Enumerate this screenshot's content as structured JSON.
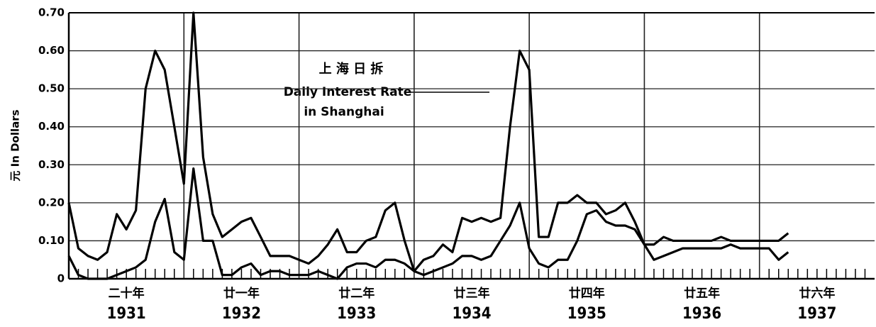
{
  "chart_data": {
    "type": "line",
    "ylabel": "元  In Dollars",
    "annotations": [
      "上 海 日 拆",
      "Daily Interest Rate",
      "in Shanghai"
    ],
    "x": [
      1931.0,
      1931.083,
      1931.167,
      1931.25,
      1931.333,
      1931.417,
      1931.5,
      1931.583,
      1931.667,
      1931.75,
      1931.833,
      1931.917,
      1932.0,
      1932.083,
      1932.167,
      1932.25,
      1932.333,
      1932.417,
      1932.5,
      1932.583,
      1932.667,
      1932.75,
      1932.833,
      1932.917,
      1933.0,
      1933.083,
      1933.167,
      1933.25,
      1933.333,
      1933.417,
      1933.5,
      1933.583,
      1933.667,
      1933.75,
      1933.833,
      1933.917,
      1934.0,
      1934.083,
      1934.167,
      1934.25,
      1934.333,
      1934.417,
      1934.5,
      1934.583,
      1934.667,
      1934.75,
      1934.833,
      1934.917,
      1935.0,
      1935.083,
      1935.167,
      1935.25,
      1935.333,
      1935.417,
      1935.5,
      1935.583,
      1935.667,
      1935.75,
      1935.833,
      1935.917,
      1936.0,
      1936.083,
      1936.167,
      1936.25,
      1936.333,
      1936.417,
      1936.5,
      1936.583,
      1936.667,
      1936.75,
      1936.833,
      1936.917,
      1937.0,
      1937.083,
      1937.167,
      1937.25
    ],
    "series": [
      {
        "color": "#000000",
        "values": [
          0.2,
          0.08,
          0.06,
          0.05,
          0.07,
          0.17,
          0.13,
          0.18,
          0.5,
          0.6,
          0.55,
          0.4,
          0.25,
          0.7,
          0.32,
          0.17,
          0.11,
          0.13,
          0.15,
          0.16,
          0.11,
          0.06,
          0.06,
          0.06,
          0.05,
          0.04,
          0.06,
          0.09,
          0.13,
          0.07,
          0.07,
          0.1,
          0.11,
          0.18,
          0.2,
          0.1,
          0.02,
          0.05,
          0.06,
          0.09,
          0.07,
          0.16,
          0.15,
          0.16,
          0.15,
          0.16,
          0.4,
          0.6,
          0.55,
          0.11,
          0.11,
          0.2,
          0.2,
          0.22,
          0.2,
          0.2,
          0.17,
          0.18,
          0.2,
          0.15,
          0.09,
          0.09,
          0.11,
          0.1,
          0.1,
          0.1,
          0.1,
          0.1,
          0.11,
          0.1,
          0.1,
          0.1,
          0.1,
          0.1,
          0.1,
          0.12
        ]
      },
      {
        "color": "#000000",
        "values": [
          0.06,
          0.01,
          0.0,
          0.0,
          0.0,
          0.01,
          0.02,
          0.03,
          0.05,
          0.15,
          0.21,
          0.07,
          0.05,
          0.29,
          0.1,
          0.1,
          0.01,
          0.01,
          0.03,
          0.04,
          0.01,
          0.02,
          0.02,
          0.01,
          0.01,
          0.01,
          0.02,
          0.01,
          0.0,
          0.03,
          0.04,
          0.04,
          0.03,
          0.05,
          0.05,
          0.04,
          0.02,
          0.01,
          0.02,
          0.03,
          0.04,
          0.06,
          0.06,
          0.05,
          0.06,
          0.1,
          0.14,
          0.2,
          0.08,
          0.04,
          0.03,
          0.05,
          0.05,
          0.1,
          0.17,
          0.18,
          0.15,
          0.14,
          0.14,
          0.13,
          0.09,
          0.05,
          0.06,
          0.07,
          0.08,
          0.08,
          0.08,
          0.08,
          0.08,
          0.09,
          0.08,
          0.08,
          0.08,
          0.08,
          0.05,
          0.07
        ]
      }
    ],
    "xlim": [
      1931,
      1938
    ],
    "xticks": [
      1931,
      1932,
      1933,
      1934,
      1935,
      1936,
      1937
    ],
    "year_labels_zh": [
      "二十年",
      "廿一年",
      "廿二年",
      "廿三年",
      "廿四年",
      "廿五年",
      "廿六年"
    ],
    "ylim": [
      0,
      0.7
    ],
    "yticks": [
      0,
      {
        "value": 0.1,
        "label": "0.10"
      },
      {
        "value": 0.2,
        "label": "0.20"
      },
      {
        "value": 0.3,
        "label": "0.30"
      },
      {
        "value": 0.4,
        "label": "0.40"
      },
      {
        "value": 0.5,
        "label": "0.50"
      },
      {
        "value": 0.6,
        "label": "0.60"
      },
      {
        "value": 0.7,
        "label": "0.70"
      }
    ],
    "grid": true
  }
}
